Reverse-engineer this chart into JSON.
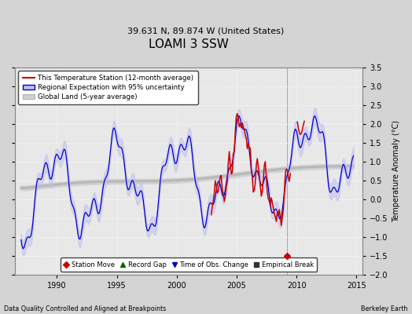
{
  "title": "LOAMI 3 SSW",
  "subtitle": "39.631 N, 89.874 W (United States)",
  "ylabel": "Temperature Anomaly (°C)",
  "xlabel_note": "Data Quality Controlled and Aligned at Breakpoints",
  "credit": "Berkeley Earth",
  "xmin": 1986.5,
  "xmax": 2015.5,
  "ymin": -2.0,
  "ymax": 3.5,
  "yticks": [
    -2,
    -1.5,
    -1,
    -0.5,
    0,
    0.5,
    1,
    1.5,
    2,
    2.5,
    3,
    3.5
  ],
  "xticks": [
    1990,
    1995,
    2000,
    2005,
    2010,
    2015
  ],
  "fig_bg_color": "#d4d4d4",
  "plot_bg_color": "#e8e8e8",
  "station_move_x": 2009.2,
  "station_move_y": -1.5,
  "red_color": "#cc0000",
  "blue_color": "#0000cc",
  "blue_fill_color": "#c0c0ee",
  "gray_line_color": "#b8b8b8",
  "gray_fill_color": "#d0d0d0",
  "legend_items": [
    "This Temperature Station (12-month average)",
    "Regional Expectation with 95% uncertainty",
    "Global Land (5-year average)"
  ],
  "legend2_items": [
    "Station Move",
    "Record Gap",
    "Time of Obs. Change",
    "Empirical Break"
  ],
  "grid_color": "#ffffff",
  "grid_linestyle": ":",
  "title_fontsize": 11,
  "subtitle_fontsize": 8,
  "tick_fontsize": 7,
  "ylabel_fontsize": 7
}
